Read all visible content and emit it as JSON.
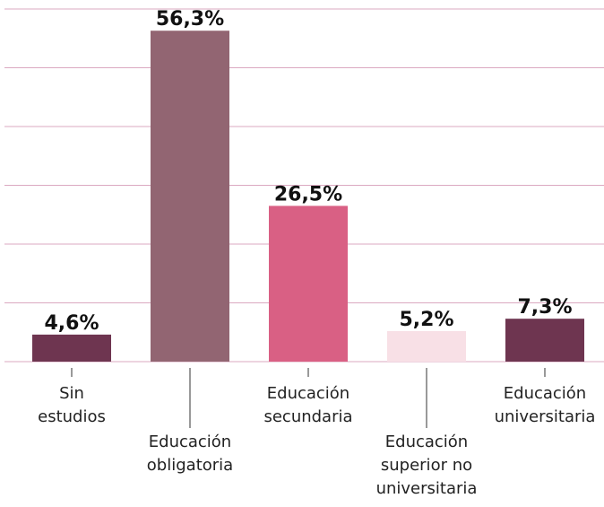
{
  "chart_data": {
    "type": "bar",
    "categories": [
      "Sin\nestudios",
      "Educación\nobligatoria",
      "Educación\nsecundaria",
      "Educación\nsuperior no\nuniversitaria",
      "Educación\nuniversitaria"
    ],
    "values": [
      4.6,
      56.3,
      26.5,
      5.2,
      7.3
    ],
    "value_labels": [
      "4,6%",
      "56,3%",
      "26,5%",
      "5,2%",
      "7,3%"
    ],
    "colors": [
      "#6e3550",
      "#926572",
      "#d96084",
      "#f8e0e6",
      "#6e3550"
    ],
    "ylim": [
      0,
      60
    ],
    "yticks": [
      0,
      10,
      20,
      30,
      40,
      50,
      60
    ],
    "grid": true
  }
}
